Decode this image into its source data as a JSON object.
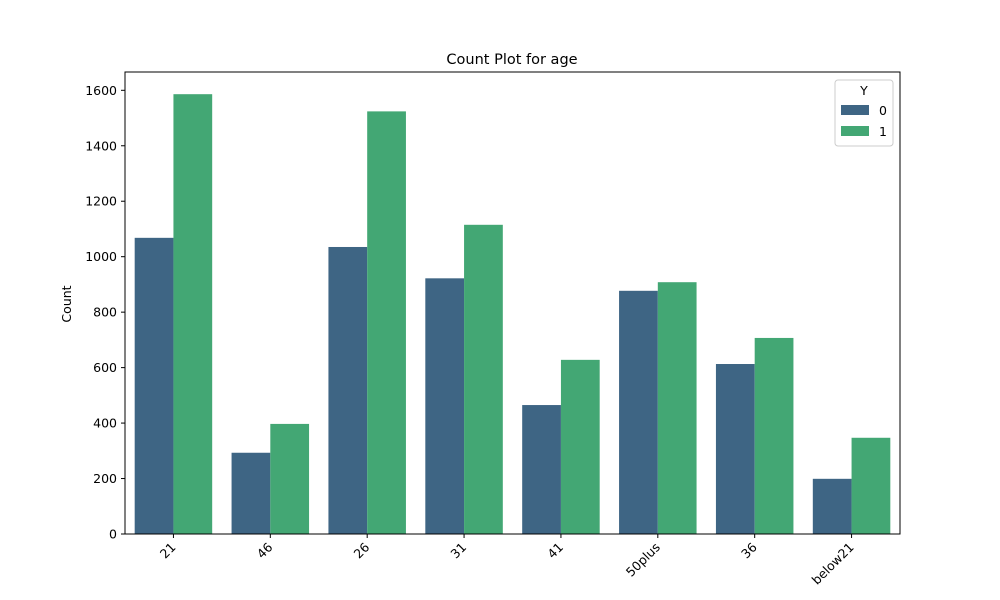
{
  "chart_data": {
    "type": "bar",
    "title": "Count Plot for age",
    "xlabel": "",
    "ylabel": "Count",
    "categories": [
      "21",
      "46",
      "26",
      "31",
      "41",
      "50plus",
      "36",
      "below21"
    ],
    "series": [
      {
        "name": "0",
        "color": "#3e6584",
        "values": [
          1068,
          293,
          1035,
          922,
          465,
          877,
          613,
          199
        ]
      },
      {
        "name": "1",
        "color": "#43a774",
        "values": [
          1586,
          397,
          1524,
          1115,
          628,
          908,
          707,
          347
        ]
      }
    ],
    "ylim": [
      0,
      1666
    ],
    "yticks": [
      0,
      200,
      400,
      600,
      800,
      1000,
      1200,
      1400,
      1600
    ],
    "xtick_rotation": 45,
    "grid": false,
    "legend": {
      "title": "Y",
      "placement": "top-right"
    }
  }
}
